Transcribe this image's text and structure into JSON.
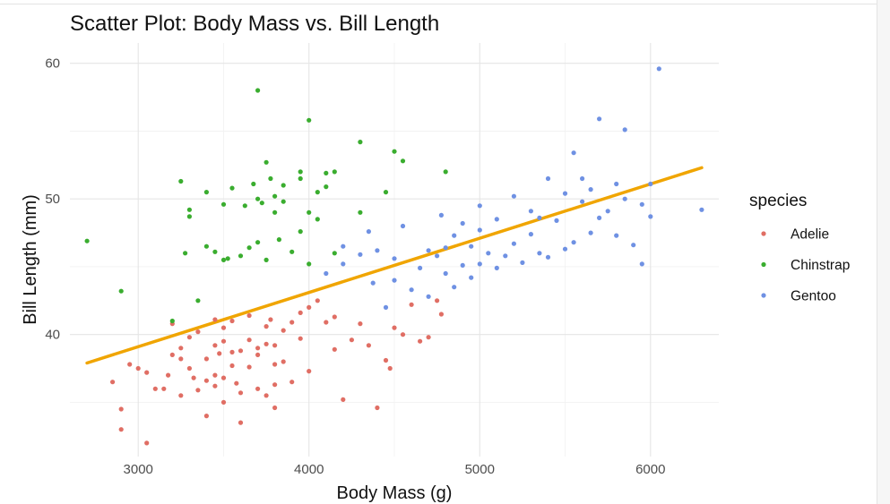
{
  "chart_data": {
    "type": "scatter",
    "title": "Scatter Plot: Body Mass vs. Bill Length",
    "xlabel": "Body Mass (g)",
    "ylabel": "Bill Length (mm)",
    "xlim": [
      2600,
      6400
    ],
    "ylim": [
      31,
      61.5
    ],
    "xticks": [
      3000,
      4000,
      5000,
      6000
    ],
    "yticks": [
      40,
      50,
      60
    ],
    "grid": true,
    "legend": {
      "title": "species",
      "placement": "right"
    },
    "trend_line": {
      "color": "#f0a500",
      "x": [
        2700,
        6300
      ],
      "y": [
        37.9,
        52.3
      ]
    },
    "series": [
      {
        "name": "Adelie",
        "color": "#e06e64",
        "points": [
          [
            2850,
            36.5
          ],
          [
            2900,
            33.0
          ],
          [
            2900,
            34.5
          ],
          [
            2950,
            37.8
          ],
          [
            3000,
            37.5
          ],
          [
            3050,
            37.2
          ],
          [
            3050,
            32.0
          ],
          [
            3100,
            36.0
          ],
          [
            3150,
            36.0
          ],
          [
            3175,
            37.0
          ],
          [
            3200,
            38.5
          ],
          [
            3200,
            40.8
          ],
          [
            3250,
            35.5
          ],
          [
            3250,
            39.0
          ],
          [
            3250,
            38.2
          ],
          [
            3300,
            37.5
          ],
          [
            3300,
            39.8
          ],
          [
            3325,
            36.8
          ],
          [
            3350,
            35.9
          ],
          [
            3350,
            40.2
          ],
          [
            3400,
            34.0
          ],
          [
            3400,
            36.6
          ],
          [
            3400,
            38.2
          ],
          [
            3450,
            39.2
          ],
          [
            3450,
            41.1
          ],
          [
            3450,
            37.0
          ],
          [
            3450,
            36.2
          ],
          [
            3475,
            38.6
          ],
          [
            3500,
            35.0
          ],
          [
            3500,
            36.8
          ],
          [
            3500,
            39.5
          ],
          [
            3500,
            40.5
          ],
          [
            3550,
            37.7
          ],
          [
            3550,
            38.7
          ],
          [
            3550,
            41.0
          ],
          [
            3575,
            36.4
          ],
          [
            3600,
            33.5
          ],
          [
            3600,
            35.7
          ],
          [
            3600,
            38.8
          ],
          [
            3650,
            39.6
          ],
          [
            3650,
            37.6
          ],
          [
            3650,
            41.4
          ],
          [
            3700,
            36.0
          ],
          [
            3700,
            38.5
          ],
          [
            3700,
            39.0
          ],
          [
            3750,
            35.5
          ],
          [
            3750,
            39.3
          ],
          [
            3750,
            40.6
          ],
          [
            3775,
            41.1
          ],
          [
            3800,
            34.6
          ],
          [
            3800,
            36.3
          ],
          [
            3800,
            37.8
          ],
          [
            3800,
            39.2
          ],
          [
            3850,
            40.3
          ],
          [
            3850,
            38.0
          ],
          [
            3900,
            36.5
          ],
          [
            3900,
            40.9
          ],
          [
            3950,
            39.7
          ],
          [
            3950,
            41.6
          ],
          [
            4000,
            37.3
          ],
          [
            4000,
            42.0
          ],
          [
            4050,
            42.5
          ],
          [
            4100,
            40.9
          ],
          [
            4150,
            38.9
          ],
          [
            4150,
            41.3
          ],
          [
            4200,
            35.2
          ],
          [
            4250,
            39.6
          ],
          [
            4300,
            40.8
          ],
          [
            4350,
            39.2
          ],
          [
            4400,
            34.6
          ],
          [
            4450,
            38.1
          ],
          [
            4475,
            37.5
          ],
          [
            4500,
            40.5
          ],
          [
            4550,
            40.0
          ],
          [
            4600,
            42.2
          ],
          [
            4650,
            39.5
          ],
          [
            4700,
            39.8
          ],
          [
            4750,
            42.5
          ],
          [
            4775,
            41.5
          ]
        ]
      },
      {
        "name": "Chinstrap",
        "color": "#3aad2f",
        "points": [
          [
            2700,
            46.9
          ],
          [
            2900,
            43.2
          ],
          [
            3200,
            41.0
          ],
          [
            3250,
            51.3
          ],
          [
            3275,
            46.0
          ],
          [
            3300,
            48.7
          ],
          [
            3300,
            49.2
          ],
          [
            3350,
            42.5
          ],
          [
            3400,
            46.5
          ],
          [
            3400,
            50.5
          ],
          [
            3450,
            46.1
          ],
          [
            3500,
            45.5
          ],
          [
            3500,
            49.6
          ],
          [
            3525,
            45.6
          ],
          [
            3550,
            50.8
          ],
          [
            3600,
            45.8
          ],
          [
            3625,
            49.5
          ],
          [
            3650,
            46.4
          ],
          [
            3675,
            51.1
          ],
          [
            3700,
            46.8
          ],
          [
            3700,
            50.0
          ],
          [
            3700,
            58.0
          ],
          [
            3725,
            49.7
          ],
          [
            3750,
            45.5
          ],
          [
            3750,
            52.7
          ],
          [
            3775,
            51.5
          ],
          [
            3800,
            50.2
          ],
          [
            3800,
            49.0
          ],
          [
            3825,
            47.0
          ],
          [
            3850,
            49.8
          ],
          [
            3850,
            51.0
          ],
          [
            3900,
            46.1
          ],
          [
            3950,
            51.5
          ],
          [
            3950,
            47.6
          ],
          [
            3950,
            52.0
          ],
          [
            4000,
            45.2
          ],
          [
            4000,
            49.0
          ],
          [
            4000,
            55.8
          ],
          [
            4050,
            48.5
          ],
          [
            4050,
            50.5
          ],
          [
            4100,
            50.9
          ],
          [
            4100,
            51.9
          ],
          [
            4150,
            46.0
          ],
          [
            4150,
            52.0
          ],
          [
            4300,
            49.0
          ],
          [
            4300,
            54.2
          ],
          [
            4450,
            50.5
          ],
          [
            4500,
            53.5
          ],
          [
            4550,
            52.8
          ],
          [
            4800,
            52.0
          ]
        ]
      },
      {
        "name": "Gentoo",
        "color": "#6f91e3",
        "points": [
          [
            4100,
            44.5
          ],
          [
            4200,
            45.2
          ],
          [
            4200,
            46.5
          ],
          [
            4300,
            45.9
          ],
          [
            4350,
            47.6
          ],
          [
            4375,
            43.8
          ],
          [
            4400,
            46.2
          ],
          [
            4450,
            42.0
          ],
          [
            4500,
            44.0
          ],
          [
            4500,
            45.6
          ],
          [
            4550,
            48.0
          ],
          [
            4600,
            43.3
          ],
          [
            4650,
            44.9
          ],
          [
            4700,
            42.8
          ],
          [
            4700,
            46.2
          ],
          [
            4750,
            45.8
          ],
          [
            4775,
            48.8
          ],
          [
            4800,
            44.5
          ],
          [
            4800,
            46.4
          ],
          [
            4850,
            43.5
          ],
          [
            4850,
            47.3
          ],
          [
            4900,
            45.1
          ],
          [
            4900,
            48.2
          ],
          [
            4950,
            46.5
          ],
          [
            4950,
            44.2
          ],
          [
            5000,
            45.2
          ],
          [
            5000,
            47.7
          ],
          [
            5000,
            49.5
          ],
          [
            5050,
            46.0
          ],
          [
            5100,
            44.9
          ],
          [
            5100,
            48.5
          ],
          [
            5150,
            45.8
          ],
          [
            5200,
            46.7
          ],
          [
            5200,
            50.2
          ],
          [
            5250,
            45.3
          ],
          [
            5300,
            47.4
          ],
          [
            5300,
            49.1
          ],
          [
            5350,
            46.0
          ],
          [
            5350,
            48.6
          ],
          [
            5400,
            45.7
          ],
          [
            5400,
            51.5
          ],
          [
            5450,
            48.4
          ],
          [
            5500,
            46.3
          ],
          [
            5500,
            50.4
          ],
          [
            5550,
            46.8
          ],
          [
            5550,
            53.4
          ],
          [
            5600,
            49.8
          ],
          [
            5600,
            51.5
          ],
          [
            5650,
            47.5
          ],
          [
            5650,
            50.7
          ],
          [
            5700,
            55.9
          ],
          [
            5700,
            48.6
          ],
          [
            5750,
            49.1
          ],
          [
            5800,
            51.1
          ],
          [
            5800,
            47.3
          ],
          [
            5850,
            50.0
          ],
          [
            5850,
            55.1
          ],
          [
            5900,
            46.6
          ],
          [
            5950,
            45.2
          ],
          [
            5950,
            49.6
          ],
          [
            6000,
            51.1
          ],
          [
            6000,
            48.7
          ],
          [
            6050,
            59.6
          ],
          [
            6300,
            49.2
          ]
        ]
      }
    ]
  }
}
